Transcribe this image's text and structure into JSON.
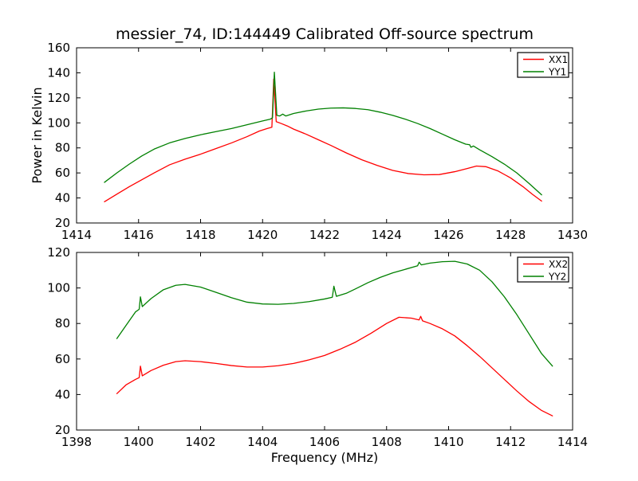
{
  "figure": {
    "title": "messier_74, ID:144449 Calibrated Off-source spectrum",
    "background": "#ffffff",
    "axes_edge_color": "#000000"
  },
  "chart_data": [
    {
      "type": "line",
      "title": "",
      "xlabel": "",
      "ylabel": "Power in Kelvin",
      "xlim": [
        1414,
        1430
      ],
      "ylim": [
        20,
        160
      ],
      "xticks": [
        1414,
        1416,
        1418,
        1420,
        1422,
        1424,
        1426,
        1428,
        1430
      ],
      "yticks": [
        20,
        40,
        60,
        80,
        100,
        120,
        140,
        160
      ],
      "grid": false,
      "legend_position": "upper right",
      "series": [
        {
          "name": "XX1",
          "color": "#ff0000",
          "points": [
            [
              1414.9,
              37
            ],
            [
              1415.3,
              43
            ],
            [
              1415.7,
              49
            ],
            [
              1416.1,
              54.5
            ],
            [
              1416.5,
              60
            ],
            [
              1417.0,
              66.5
            ],
            [
              1417.5,
              71
            ],
            [
              1418.0,
              75
            ],
            [
              1418.5,
              79.5
            ],
            [
              1419.0,
              84
            ],
            [
              1419.5,
              89
            ],
            [
              1419.9,
              93.5
            ],
            [
              1420.15,
              95.5
            ],
            [
              1420.3,
              96.5
            ],
            [
              1420.36,
              135
            ],
            [
              1420.44,
              101
            ],
            [
              1420.6,
              99.5
            ],
            [
              1420.8,
              97.5
            ],
            [
              1421.0,
              95
            ],
            [
              1421.4,
              91
            ],
            [
              1421.8,
              86.5
            ],
            [
              1422.2,
              82
            ],
            [
              1422.7,
              76
            ],
            [
              1423.2,
              70.5
            ],
            [
              1423.7,
              66
            ],
            [
              1424.2,
              62
            ],
            [
              1424.7,
              59.5
            ],
            [
              1425.2,
              58.5
            ],
            [
              1425.7,
              58.7
            ],
            [
              1426.2,
              61
            ],
            [
              1426.6,
              63.5
            ],
            [
              1426.9,
              65.5
            ],
            [
              1427.2,
              65
            ],
            [
              1427.6,
              61.5
            ],
            [
              1428.0,
              56
            ],
            [
              1428.4,
              49
            ],
            [
              1428.7,
              43
            ],
            [
              1429.0,
              37.5
            ]
          ]
        },
        {
          "name": "YY1",
          "color": "#008000",
          "points": [
            [
              1414.9,
              52.5
            ],
            [
              1415.3,
              60
            ],
            [
              1415.7,
              67
            ],
            [
              1416.1,
              73.5
            ],
            [
              1416.5,
              79
            ],
            [
              1417.0,
              84
            ],
            [
              1417.5,
              87.5
            ],
            [
              1418.0,
              90.5
            ],
            [
              1418.5,
              93
            ],
            [
              1419.0,
              95.5
            ],
            [
              1419.5,
              98.5
            ],
            [
              1420.0,
              101.5
            ],
            [
              1420.25,
              103
            ],
            [
              1420.32,
              104
            ],
            [
              1420.38,
              140.5
            ],
            [
              1420.46,
              106
            ],
            [
              1420.55,
              105.5
            ],
            [
              1420.65,
              107
            ],
            [
              1420.75,
              105.5
            ],
            [
              1421.0,
              107.5
            ],
            [
              1421.4,
              109.5
            ],
            [
              1421.8,
              111
            ],
            [
              1422.2,
              111.8
            ],
            [
              1422.6,
              112
            ],
            [
              1423.0,
              111.5
            ],
            [
              1423.4,
              110.5
            ],
            [
              1423.8,
              108.5
            ],
            [
              1424.2,
              106
            ],
            [
              1424.6,
              103
            ],
            [
              1425.0,
              99.5
            ],
            [
              1425.4,
              95.5
            ],
            [
              1425.8,
              91
            ],
            [
              1426.2,
              86.5
            ],
            [
              1426.55,
              83
            ],
            [
              1426.68,
              82.5
            ],
            [
              1426.72,
              80.5
            ],
            [
              1426.8,
              81.5
            ],
            [
              1427.0,
              78.5
            ],
            [
              1427.4,
              73
            ],
            [
              1427.8,
              67
            ],
            [
              1428.2,
              60
            ],
            [
              1428.6,
              51.5
            ],
            [
              1429.0,
              42.5
            ]
          ]
        }
      ]
    },
    {
      "type": "line",
      "title": "",
      "xlabel": "Frequency (MHz)",
      "ylabel": "",
      "xlim": [
        1398,
        1414
      ],
      "ylim": [
        20,
        120
      ],
      "xticks": [
        1398,
        1400,
        1402,
        1404,
        1406,
        1408,
        1410,
        1412,
        1414
      ],
      "yticks": [
        20,
        40,
        60,
        80,
        100,
        120
      ],
      "grid": false,
      "legend_position": "upper right",
      "series": [
        {
          "name": "XX2",
          "color": "#ff0000",
          "points": [
            [
              1399.3,
              40.5
            ],
            [
              1399.6,
              45.5
            ],
            [
              1399.9,
              48.5
            ],
            [
              1400.02,
              49.5
            ],
            [
              1400.06,
              56
            ],
            [
              1400.12,
              50.5
            ],
            [
              1400.4,
              53.5
            ],
            [
              1400.8,
              56.5
            ],
            [
              1401.2,
              58.5
            ],
            [
              1401.5,
              59
            ],
            [
              1402.0,
              58.5
            ],
            [
              1402.5,
              57.5
            ],
            [
              1403.0,
              56.3
            ],
            [
              1403.5,
              55.5
            ],
            [
              1404.0,
              55.5
            ],
            [
              1404.5,
              56.2
            ],
            [
              1405.0,
              57.5
            ],
            [
              1405.5,
              59.5
            ],
            [
              1406.0,
              62
            ],
            [
              1406.5,
              65.5
            ],
            [
              1407.0,
              69.5
            ],
            [
              1407.5,
              74.5
            ],
            [
              1408.0,
              80
            ],
            [
              1408.4,
              83.5
            ],
            [
              1408.8,
              83
            ],
            [
              1409.05,
              82
            ],
            [
              1409.1,
              84
            ],
            [
              1409.16,
              81.5
            ],
            [
              1409.4,
              80
            ],
            [
              1409.8,
              77
            ],
            [
              1410.2,
              73
            ],
            [
              1410.6,
              67.5
            ],
            [
              1411.0,
              61.5
            ],
            [
              1411.4,
              55
            ],
            [
              1411.8,
              48.5
            ],
            [
              1412.2,
              42
            ],
            [
              1412.6,
              36
            ],
            [
              1413.0,
              31
            ],
            [
              1413.35,
              28
            ]
          ]
        },
        {
          "name": "YY2",
          "color": "#008000",
          "points": [
            [
              1399.3,
              71.5
            ],
            [
              1399.6,
              79
            ],
            [
              1399.9,
              86.5
            ],
            [
              1400.02,
              88
            ],
            [
              1400.06,
              95
            ],
            [
              1400.12,
              89.5
            ],
            [
              1400.4,
              94
            ],
            [
              1400.8,
              99
            ],
            [
              1401.2,
              101.5
            ],
            [
              1401.5,
              102
            ],
            [
              1402.0,
              100.5
            ],
            [
              1402.5,
              97.5
            ],
            [
              1403.0,
              94.5
            ],
            [
              1403.5,
              92
            ],
            [
              1404.0,
              91
            ],
            [
              1404.5,
              90.8
            ],
            [
              1405.0,
              91.3
            ],
            [
              1405.5,
              92.3
            ],
            [
              1406.0,
              93.8
            ],
            [
              1406.25,
              94.8
            ],
            [
              1406.3,
              101
            ],
            [
              1406.38,
              95.3
            ],
            [
              1406.7,
              97
            ],
            [
              1407.0,
              99.5
            ],
            [
              1407.4,
              103
            ],
            [
              1407.8,
              106
            ],
            [
              1408.2,
              108.5
            ],
            [
              1408.6,
              110.5
            ],
            [
              1409.0,
              112.5
            ],
            [
              1409.05,
              114.5
            ],
            [
              1409.12,
              113
            ],
            [
              1409.4,
              114
            ],
            [
              1409.8,
              114.8
            ],
            [
              1410.2,
              115
            ],
            [
              1410.6,
              113.5
            ],
            [
              1411.0,
              110
            ],
            [
              1411.4,
              103.5
            ],
            [
              1411.8,
              95
            ],
            [
              1412.2,
              85
            ],
            [
              1412.6,
              74
            ],
            [
              1413.0,
              63
            ],
            [
              1413.35,
              56
            ]
          ]
        }
      ]
    }
  ]
}
